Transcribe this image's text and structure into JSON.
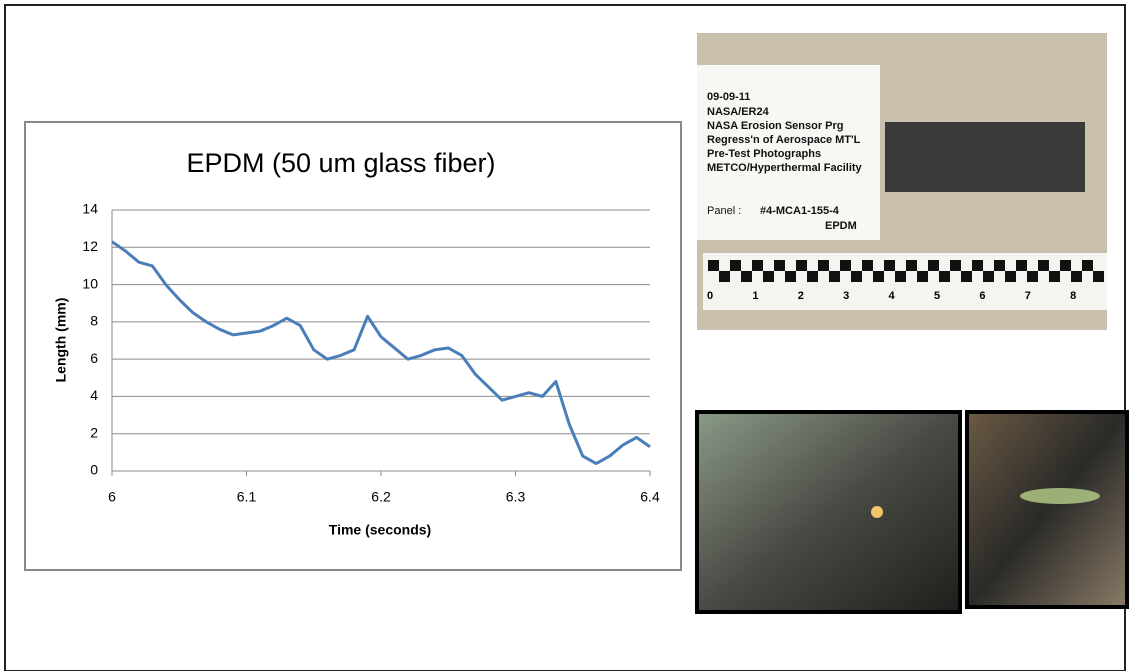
{
  "chart_data": {
    "type": "line",
    "title": "EPDM (50 um glass fiber)",
    "x_label": "Time (seconds)",
    "y_label": "Length (mm)",
    "x": [
      6.0,
      6.01,
      6.02,
      6.03,
      6.04,
      6.05,
      6.06,
      6.07,
      6.08,
      6.09,
      6.1,
      6.11,
      6.12,
      6.13,
      6.14,
      6.15,
      6.16,
      6.17,
      6.18,
      6.19,
      6.2,
      6.21,
      6.22,
      6.23,
      6.24,
      6.25,
      6.26,
      6.27,
      6.28,
      6.29,
      6.3,
      6.31,
      6.32,
      6.33,
      6.34,
      6.35,
      6.36,
      6.37,
      6.38,
      6.39,
      6.4
    ],
    "series": [
      {
        "name": "EPDM",
        "color": "#4a7ebb",
        "values": [
          12.3,
          11.8,
          11.2,
          11.0,
          10.0,
          9.2,
          8.5,
          8.0,
          7.6,
          7.3,
          7.4,
          7.5,
          7.8,
          8.2,
          7.8,
          6.5,
          6.0,
          6.2,
          6.5,
          8.3,
          7.2,
          6.6,
          6.0,
          6.2,
          6.5,
          6.6,
          6.2,
          5.2,
          4.5,
          3.8,
          4.0,
          4.2,
          4.0,
          4.8,
          2.5,
          0.8,
          0.4,
          0.8,
          1.4,
          1.8,
          1.3
        ]
      }
    ],
    "xlim": [
      6,
      6.4
    ],
    "xticks": [
      6,
      6.1,
      6.2,
      6.3,
      6.4
    ],
    "ylim": [
      0,
      14
    ],
    "yticks": [
      0,
      2,
      4,
      6,
      8,
      10,
      12,
      14
    ],
    "grid": true
  },
  "photo": {
    "card_lines": [
      "09-09-11",
      "NASA/ER24",
      "NASA Erosion Sensor Prg",
      "Regress'n of Aerospace MT'L",
      "Pre-Test Photographs",
      "METCO/Hyperthermal Facility"
    ],
    "panel_label": "Panel :",
    "panel_id": "#4-MCA1-155-4",
    "material": "EPDM",
    "ruler_labels": [
      "0",
      "1",
      "2",
      "3",
      "4",
      "5",
      "6",
      "7",
      "8"
    ]
  }
}
